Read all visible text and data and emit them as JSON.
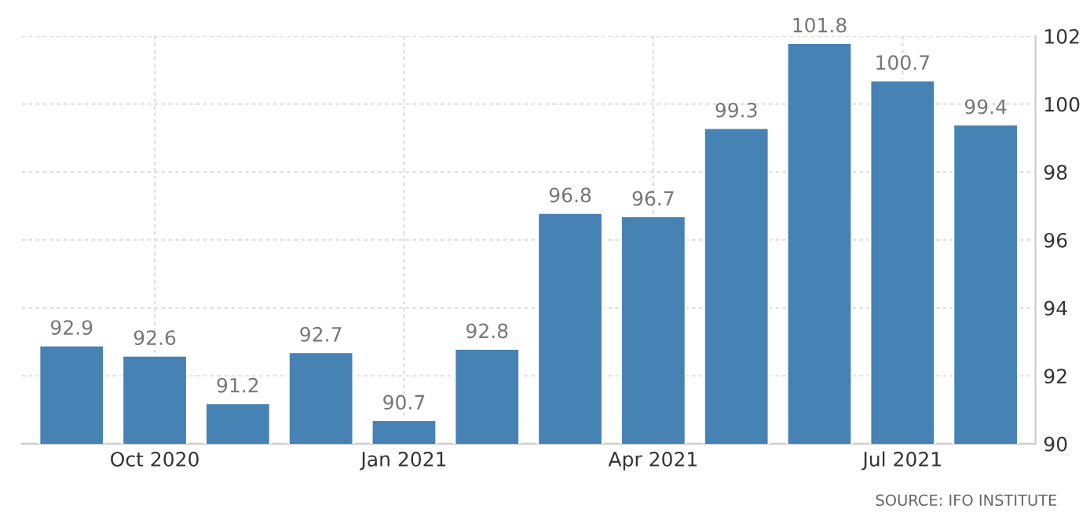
{
  "chart_data": {
    "type": "bar",
    "categories": [
      null,
      "Oct 2020",
      null,
      null,
      "Jan 2021",
      null,
      null,
      "Apr 2021",
      null,
      null,
      "Jul 2021",
      null
    ],
    "values": [
      92.9,
      92.6,
      91.2,
      92.7,
      90.7,
      92.8,
      96.8,
      96.7,
      99.3,
      101.8,
      100.7,
      99.4
    ],
    "color": "#4682b4",
    "ylim": [
      90,
      102
    ],
    "yticks": [
      90,
      92,
      94,
      96,
      98,
      100,
      102
    ],
    "grid": true,
    "data_labels": true,
    "annotations": [
      "SOURCE: IFO INSTITUTE"
    ]
  }
}
